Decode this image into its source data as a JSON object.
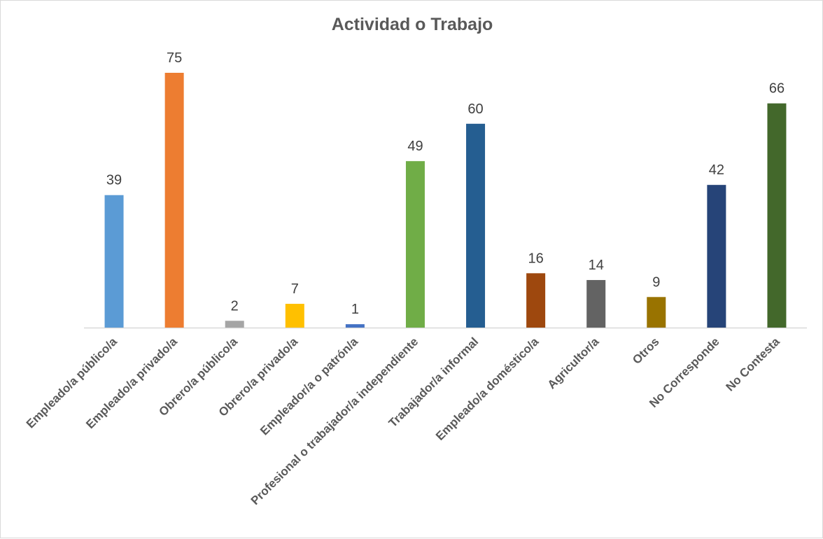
{
  "chart_data": {
    "type": "bar",
    "title": "Actividad o Trabajo",
    "categories": [
      "Empleado/a público/a",
      "Empleado/a privado/a",
      "Obrero/a público/a",
      "Obrero/a privado/a",
      "Empleador/a o patrón/a",
      "Profesional o trabajador/a independiente",
      "Trabajador/a informal",
      "Empleado/a doméstico/a",
      "Agricultor/a",
      "Otros",
      "No Corresponde",
      "No Contesta"
    ],
    "values": [
      39,
      75,
      2,
      7,
      1,
      49,
      60,
      16,
      14,
      9,
      42,
      66
    ],
    "colors": [
      "#5b9bd5",
      "#ed7d31",
      "#a5a5a5",
      "#ffc000",
      "#4472c4",
      "#70ad47",
      "#255e91",
      "#9e480e",
      "#636363",
      "#997300",
      "#264478",
      "#43682b"
    ],
    "xlabel": "",
    "ylabel": "",
    "ylim": [
      0,
      75
    ],
    "grid": false,
    "legend": "none"
  }
}
